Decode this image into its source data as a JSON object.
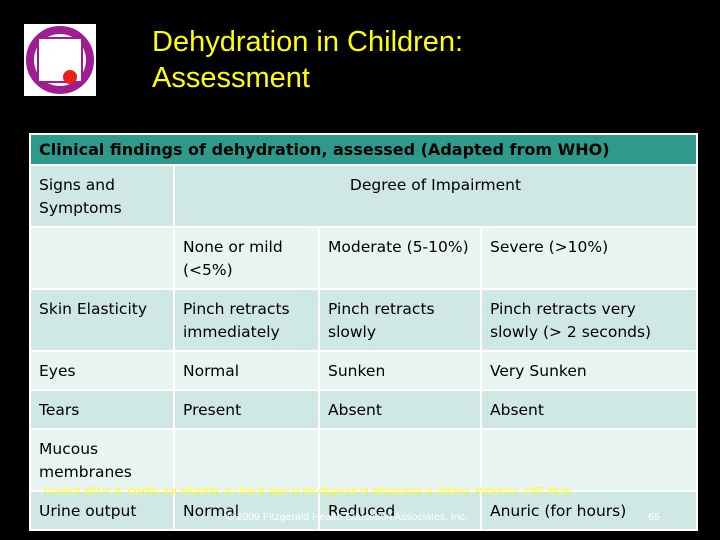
{
  "slide": {
    "title_line1": "Dehydration in Children:",
    "title_line2": "Assessment",
    "logo_colors": {
      "ring": "#a01d8f",
      "dot": "#e8201e"
    },
    "table": {
      "header": "Clinical findings of dehydration, assessed (Adapted from WHO)",
      "col1_header": "Signs and Symptoms",
      "degree_header": "Degree of Impairment",
      "degree_levels": [
        "None or mild (<5%)",
        "Moderate (5-10%)",
        "Severe (>10%)"
      ],
      "rows": [
        {
          "sign": "Skin Elasticity",
          "none": "Pinch retracts immediately",
          "moderate": "Pinch retracts slowly",
          "severe": "Pinch retracts very slowly (> 2 seconds)"
        },
        {
          "sign": "Eyes",
          "none": "Normal",
          "moderate": "Sunken",
          "severe": "Very Sunken"
        },
        {
          "sign": "Tears",
          "none": "Present",
          "moderate": "Absent",
          "severe": "Absent"
        },
        {
          "sign": "Mucous membranes",
          "none": "",
          "moderate": "",
          "severe": ""
        },
        {
          "sign": "Urine output",
          "none": "Normal",
          "moderate": "Reduced",
          "severe": "Anuric (for hours)"
        }
      ]
    },
    "reference": {
      "text": "Gorelick MH et al.  Validity and reliability of clinical signs in the diagnosis of dehydration in children.  ",
      "journal": "Pediatrics",
      "citation": ". 1997;99;e6."
    },
    "copyright": "© 2009 Fitzgerald Health Education Associates, Inc.",
    "page_number": "65"
  }
}
